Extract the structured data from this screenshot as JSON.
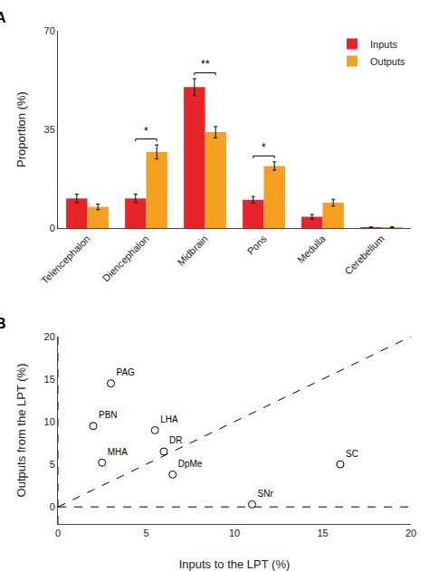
{
  "chart_data": [
    {
      "type": "bar",
      "title": "A",
      "categories": [
        "Telencephalon",
        "Diencephalon",
        "Midbrain",
        "Pons",
        "Medulla",
        "Cerebellum"
      ],
      "series": [
        {
          "name": "Inputs",
          "color": "#E8232A",
          "values": [
            10.5,
            10.5,
            50.0,
            10.0,
            4.0,
            0.3
          ],
          "errors": [
            1.5,
            1.5,
            3.0,
            1.2,
            0.8,
            0.1
          ]
        },
        {
          "name": "Outputs",
          "color": "#F5A020",
          "values": [
            7.5,
            27.0,
            34.0,
            22.0,
            9.0,
            0.3
          ],
          "errors": [
            1.0,
            2.5,
            2.0,
            1.5,
            1.2,
            0.1
          ]
        }
      ],
      "ylabel": "Proportion (%)",
      "ylim": [
        0,
        70
      ],
      "yticks": [
        0,
        35,
        70
      ],
      "annotations": [
        {
          "text": "**",
          "category": "Midbrain"
        },
        {
          "text": "*",
          "category": "Diencephalon"
        },
        {
          "text": "*",
          "category": "Pons"
        }
      ],
      "legend": "upper right",
      "grid": false
    },
    {
      "type": "scatter",
      "title": "B",
      "x": [
        3.0,
        2.0,
        5.5,
        2.5,
        6.0,
        6.5,
        11.0,
        16.0
      ],
      "values": [
        14.5,
        9.5,
        9.0,
        5.2,
        6.5,
        3.8,
        0.3,
        5.0
      ],
      "labels": [
        "PAG",
        "PBN",
        "LHA",
        "MHA",
        "DR",
        "DpMe",
        "SNr",
        "SC"
      ],
      "xlabel": "Inputs to the LPT (%)",
      "ylabel": "Outputs from the LPT (%)",
      "xlim": [
        0,
        20
      ],
      "ylim": [
        -2,
        20
      ],
      "xticks": [
        0,
        5,
        10,
        15,
        20
      ],
      "yticks": [
        0,
        5,
        10,
        15,
        20
      ],
      "marker": "circle",
      "grid": false
    }
  ]
}
